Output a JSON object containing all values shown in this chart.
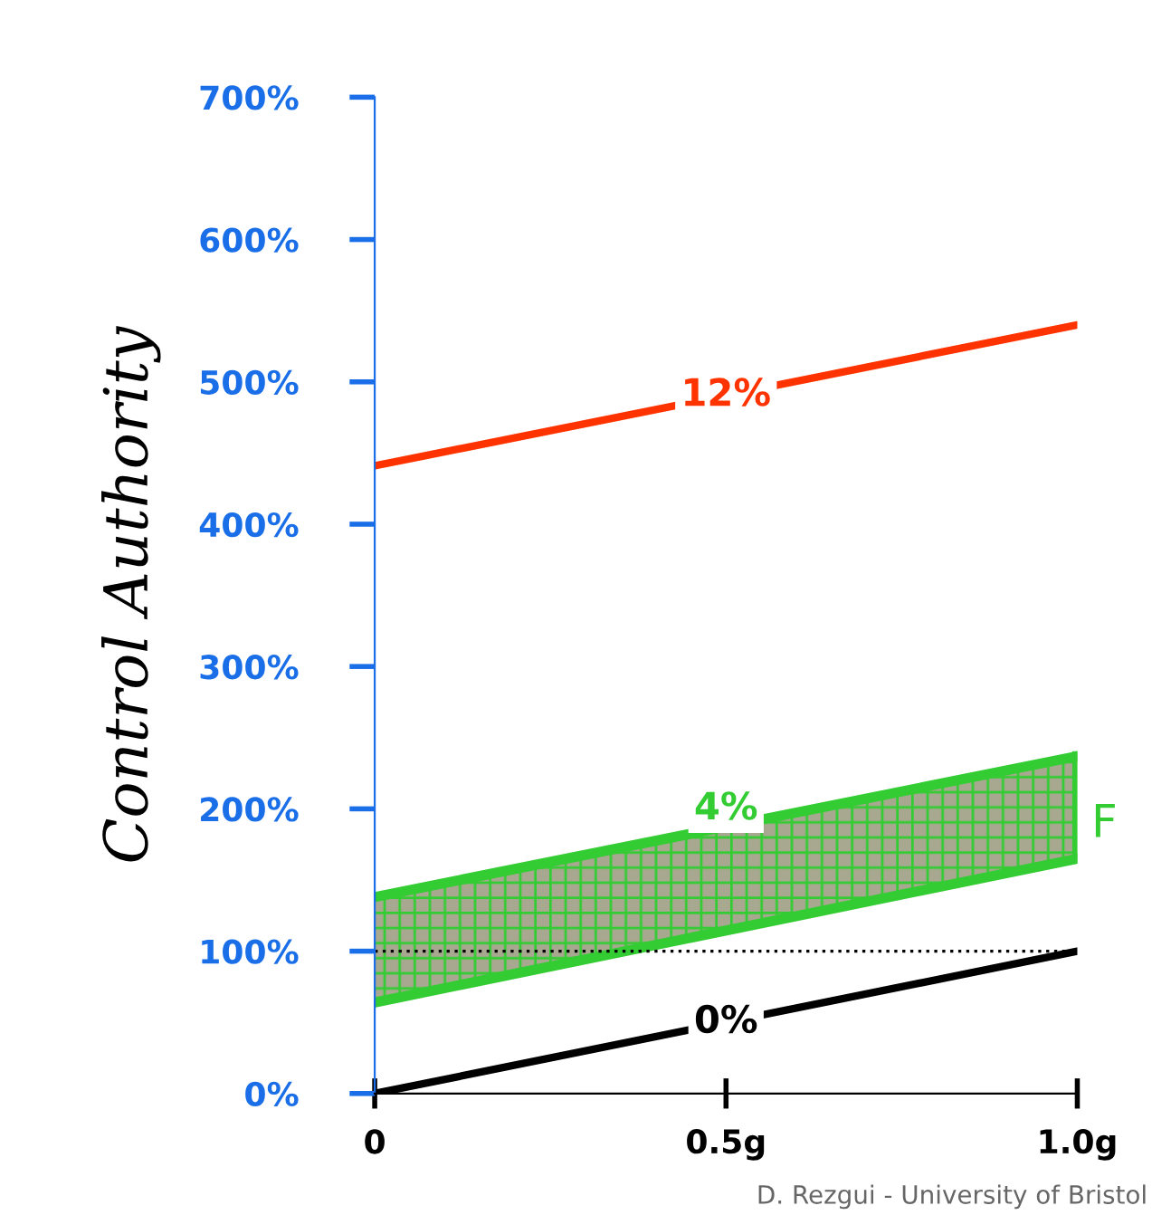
{
  "chart_data": {
    "type": "line",
    "ylabel": "Control Authority",
    "x": [
      0,
      1
    ],
    "xlim": [
      0,
      1
    ],
    "xticks": [
      {
        "value": 0,
        "label": "0"
      },
      {
        "value": 0.5,
        "label": "0.5g"
      },
      {
        "value": 1,
        "label": "1.0g"
      }
    ],
    "ylim": [
      0,
      700
    ],
    "yticks": [
      {
        "value": 0,
        "label": "0%"
      },
      {
        "value": 100,
        "label": "100%"
      },
      {
        "value": 200,
        "label": "200%"
      },
      {
        "value": 300,
        "label": "300%"
      },
      {
        "value": 400,
        "label": "400%"
      },
      {
        "value": 500,
        "label": "500%"
      },
      {
        "value": 600,
        "label": "600%"
      },
      {
        "value": 700,
        "label": "700%"
      }
    ],
    "series": [
      {
        "color": "#ff3300",
        "values": [
          441,
          540
        ]
      },
      {
        "color": "#000000",
        "values": [
          0,
          100
        ]
      },
      {
        "color": "#33cc33",
        "values": [
          null,
          null
        ],
        "lower": [
          64,
          165
        ],
        "upper": [
          138,
          237
        ]
      }
    ],
    "ref_lines": [
      {
        "axis": "y",
        "value": 100,
        "color": "#000000",
        "line_style": "dotted"
      }
    ],
    "annotations": [
      "12%",
      "0%",
      "4%",
      "F",
      "D. Rezgui - University of Bristol"
    ],
    "grid": false,
    "legend": false
  }
}
